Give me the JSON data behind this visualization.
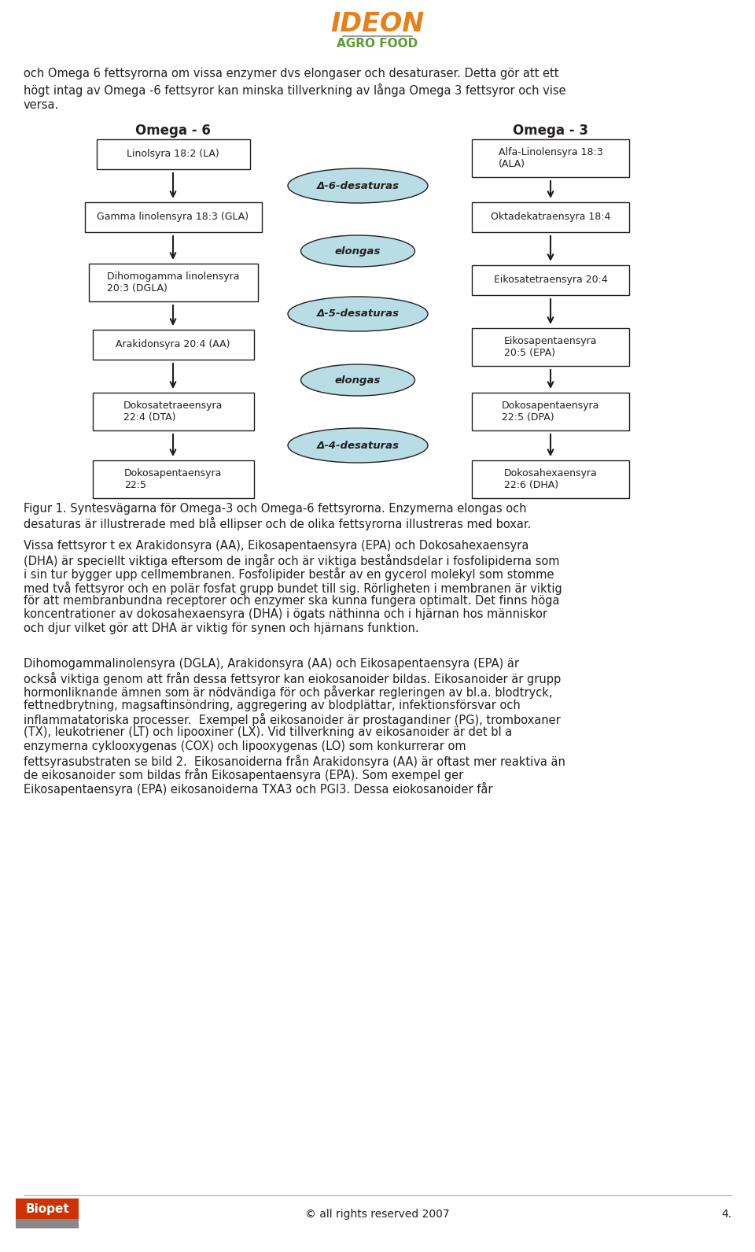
{
  "page_bg": "#ffffff",
  "text_color": "#231f20",
  "box_color": "#ffffff",
  "box_edge": "#231f20",
  "ellipse_fill": "#b8dde4",
  "ellipse_edge": "#231f20",
  "arrow_color": "#231f20",
  "omega6_title": "Omega - 6",
  "omega3_title": "Omega - 3",
  "caption": "Figur 1. Syntesvägarna för Omega-3 och Omega-6 fettsyrorna. Enzymerna elongas och\ndesaturas är illustrerade med blå ellipser och de olika fettsyrorna illustreras med boxar.",
  "body_text1": "Vissa fettsyror t ex Arakidonsyra (AA), Eikosapentaensyra (EPA) och Dokosahexaensyra\n(DHA) är speciellt viktiga eftersom de ingår och är viktiga beståndsdelar i fosfolipiderna som\ni sin tur bygger upp cellmembranen. Fosfolipider består av en gycerol molekyl som stomme\nmed två fettsyror och en polär fosfat grupp bundet till sig. Rörligheten i membranen är viktig\nför att membranbundna receptorer och enzymer ska kunna fungera optimalt. Det finns höga\nkoncentrationer av dokosahexaensyra (DHA) i ögats näthinna och i hjärnan hos människor\noch djur vilket gör att DHA är viktig för synen och hjärnans funktion.",
  "body_text2": "Dihomogammalinolensyra (DGLA), Arakidonsyra (AA) och Eikosapentaensyra (EPA) är\nockså viktiga genom att från dessa fettsyror kan eiokosanoider bildas. Eikosanoider är grupp\nhormonliknande ämnen som är nödvändiga för och påverkar regleringen av bl.a. blodtryck,\nfettnedbrytning, magsaftinsöndring, aggregering av blodplättar, infektionsförsvar och\ninflammatatoriska processer.  Exempel på eikosanoider är prostagandiner (PG), tromboxaner\n(TX), leukotriener (LT) och lipooxiner (LX). Vid tillverkning av eikosanoider är det bl a\nenzymerna cyklooxygenas (COX) och lipooxygenas (LO) som konkurrerar om\nfettsyrasubstraten se bild 2.  Eikosanoiderna från Arakidonsyra (AA) är oftast mer reaktiva än\nde eikosanoider som bildas från Eikosapentaensyra (EPA). Som exempel ger\nEikosapentaensyra (EPA) eikosanoiderna TXA3 och PGI3. Dessa eiokosanoider får",
  "intro_line1": "och Omega 6 fettsyrorna om vissa enzymer dvs elongaser och desaturaser. Detta gör att ett",
  "intro_line2": "högt intag av Omega -6 fettsyror kan minska tillverkning av långa Omega 3 fettsyror och vise",
  "intro_line3": "versa.",
  "footer_copyright": "© all rights reserved 2007",
  "footer_page": "4.",
  "ideon_color": "#e8801a",
  "agrofood_color": "#5a9e32",
  "agrofood_line_color": "#888888"
}
